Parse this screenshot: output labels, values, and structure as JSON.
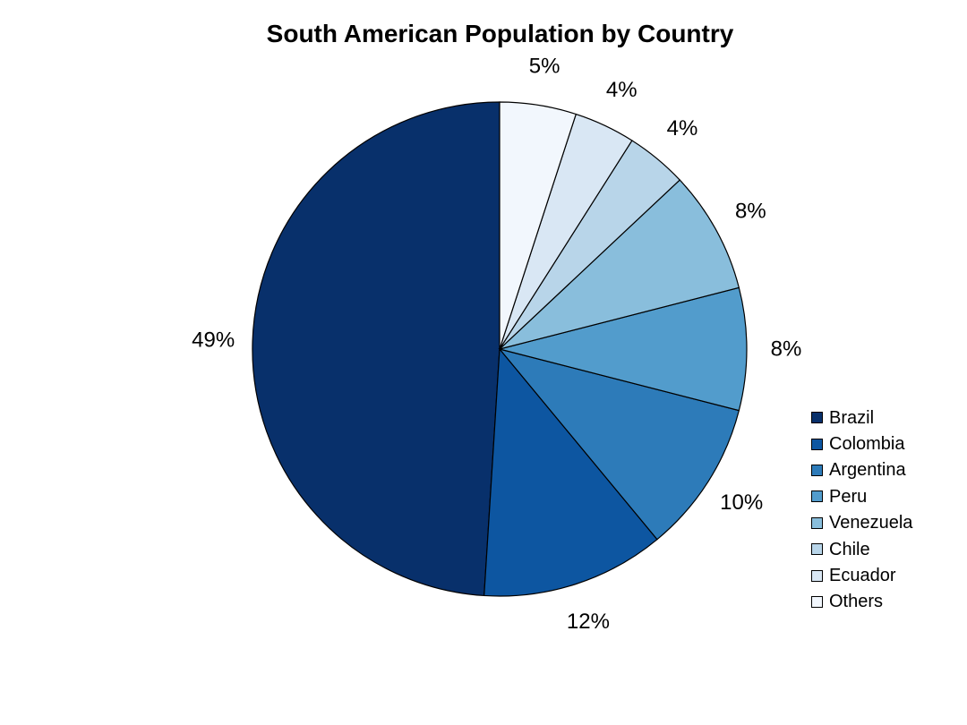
{
  "chart_data": {
    "type": "pie",
    "title": "South American Population by Country",
    "slices": [
      {
        "name": "Brazil",
        "value": 49,
        "label": "49%",
        "color": "#08306b"
      },
      {
        "name": "Colombia",
        "value": 12,
        "label": "12%",
        "color": "#0d56a1"
      },
      {
        "name": "Argentina",
        "value": 10,
        "label": "10%",
        "color": "#2d7bb9"
      },
      {
        "name": "Peru",
        "value": 8,
        "label": "8%",
        "color": "#529ccc"
      },
      {
        "name": "Venezuela",
        "value": 8,
        "label": "8%",
        "color": "#89bedc"
      },
      {
        "name": "Chile",
        "value": 4,
        "label": "4%",
        "color": "#b8d5e9"
      },
      {
        "name": "Ecuador",
        "value": 4,
        "label": "4%",
        "color": "#d9e7f4"
      },
      {
        "name": "Others",
        "value": 5,
        "label": "5%",
        "color": "#f2f7fd"
      }
    ],
    "legend_placement": "right",
    "start": "top",
    "direction": "counterclockwise"
  }
}
